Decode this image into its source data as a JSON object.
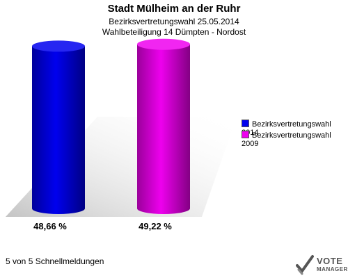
{
  "header": {
    "title": "Stadt Mülheim an der Ruhr",
    "subtitle1": "Bezirksvertretungswahl 25.05.2014",
    "subtitle2": "Wahlbeteiligung 14 Dümpten - Nordost"
  },
  "chart_data": {
    "type": "bar",
    "series": [
      {
        "name": "Bezirksvertretungswahl 2014",
        "values": [
          48.66
        ],
        "label": "48,66 %",
        "color": "#0000ee"
      },
      {
        "name": "Bezirksvertretungswahl 2009",
        "values": [
          49.22
        ],
        "label": "49,22 %",
        "color": "#ee00ee"
      }
    ],
    "ylim": [
      0,
      50
    ],
    "legend": "right",
    "grid": false
  },
  "footer": {
    "text": "5 von 5 Schnellmeldungen"
  },
  "logo": {
    "line1": "VOTE",
    "line2": "MANAGER"
  }
}
